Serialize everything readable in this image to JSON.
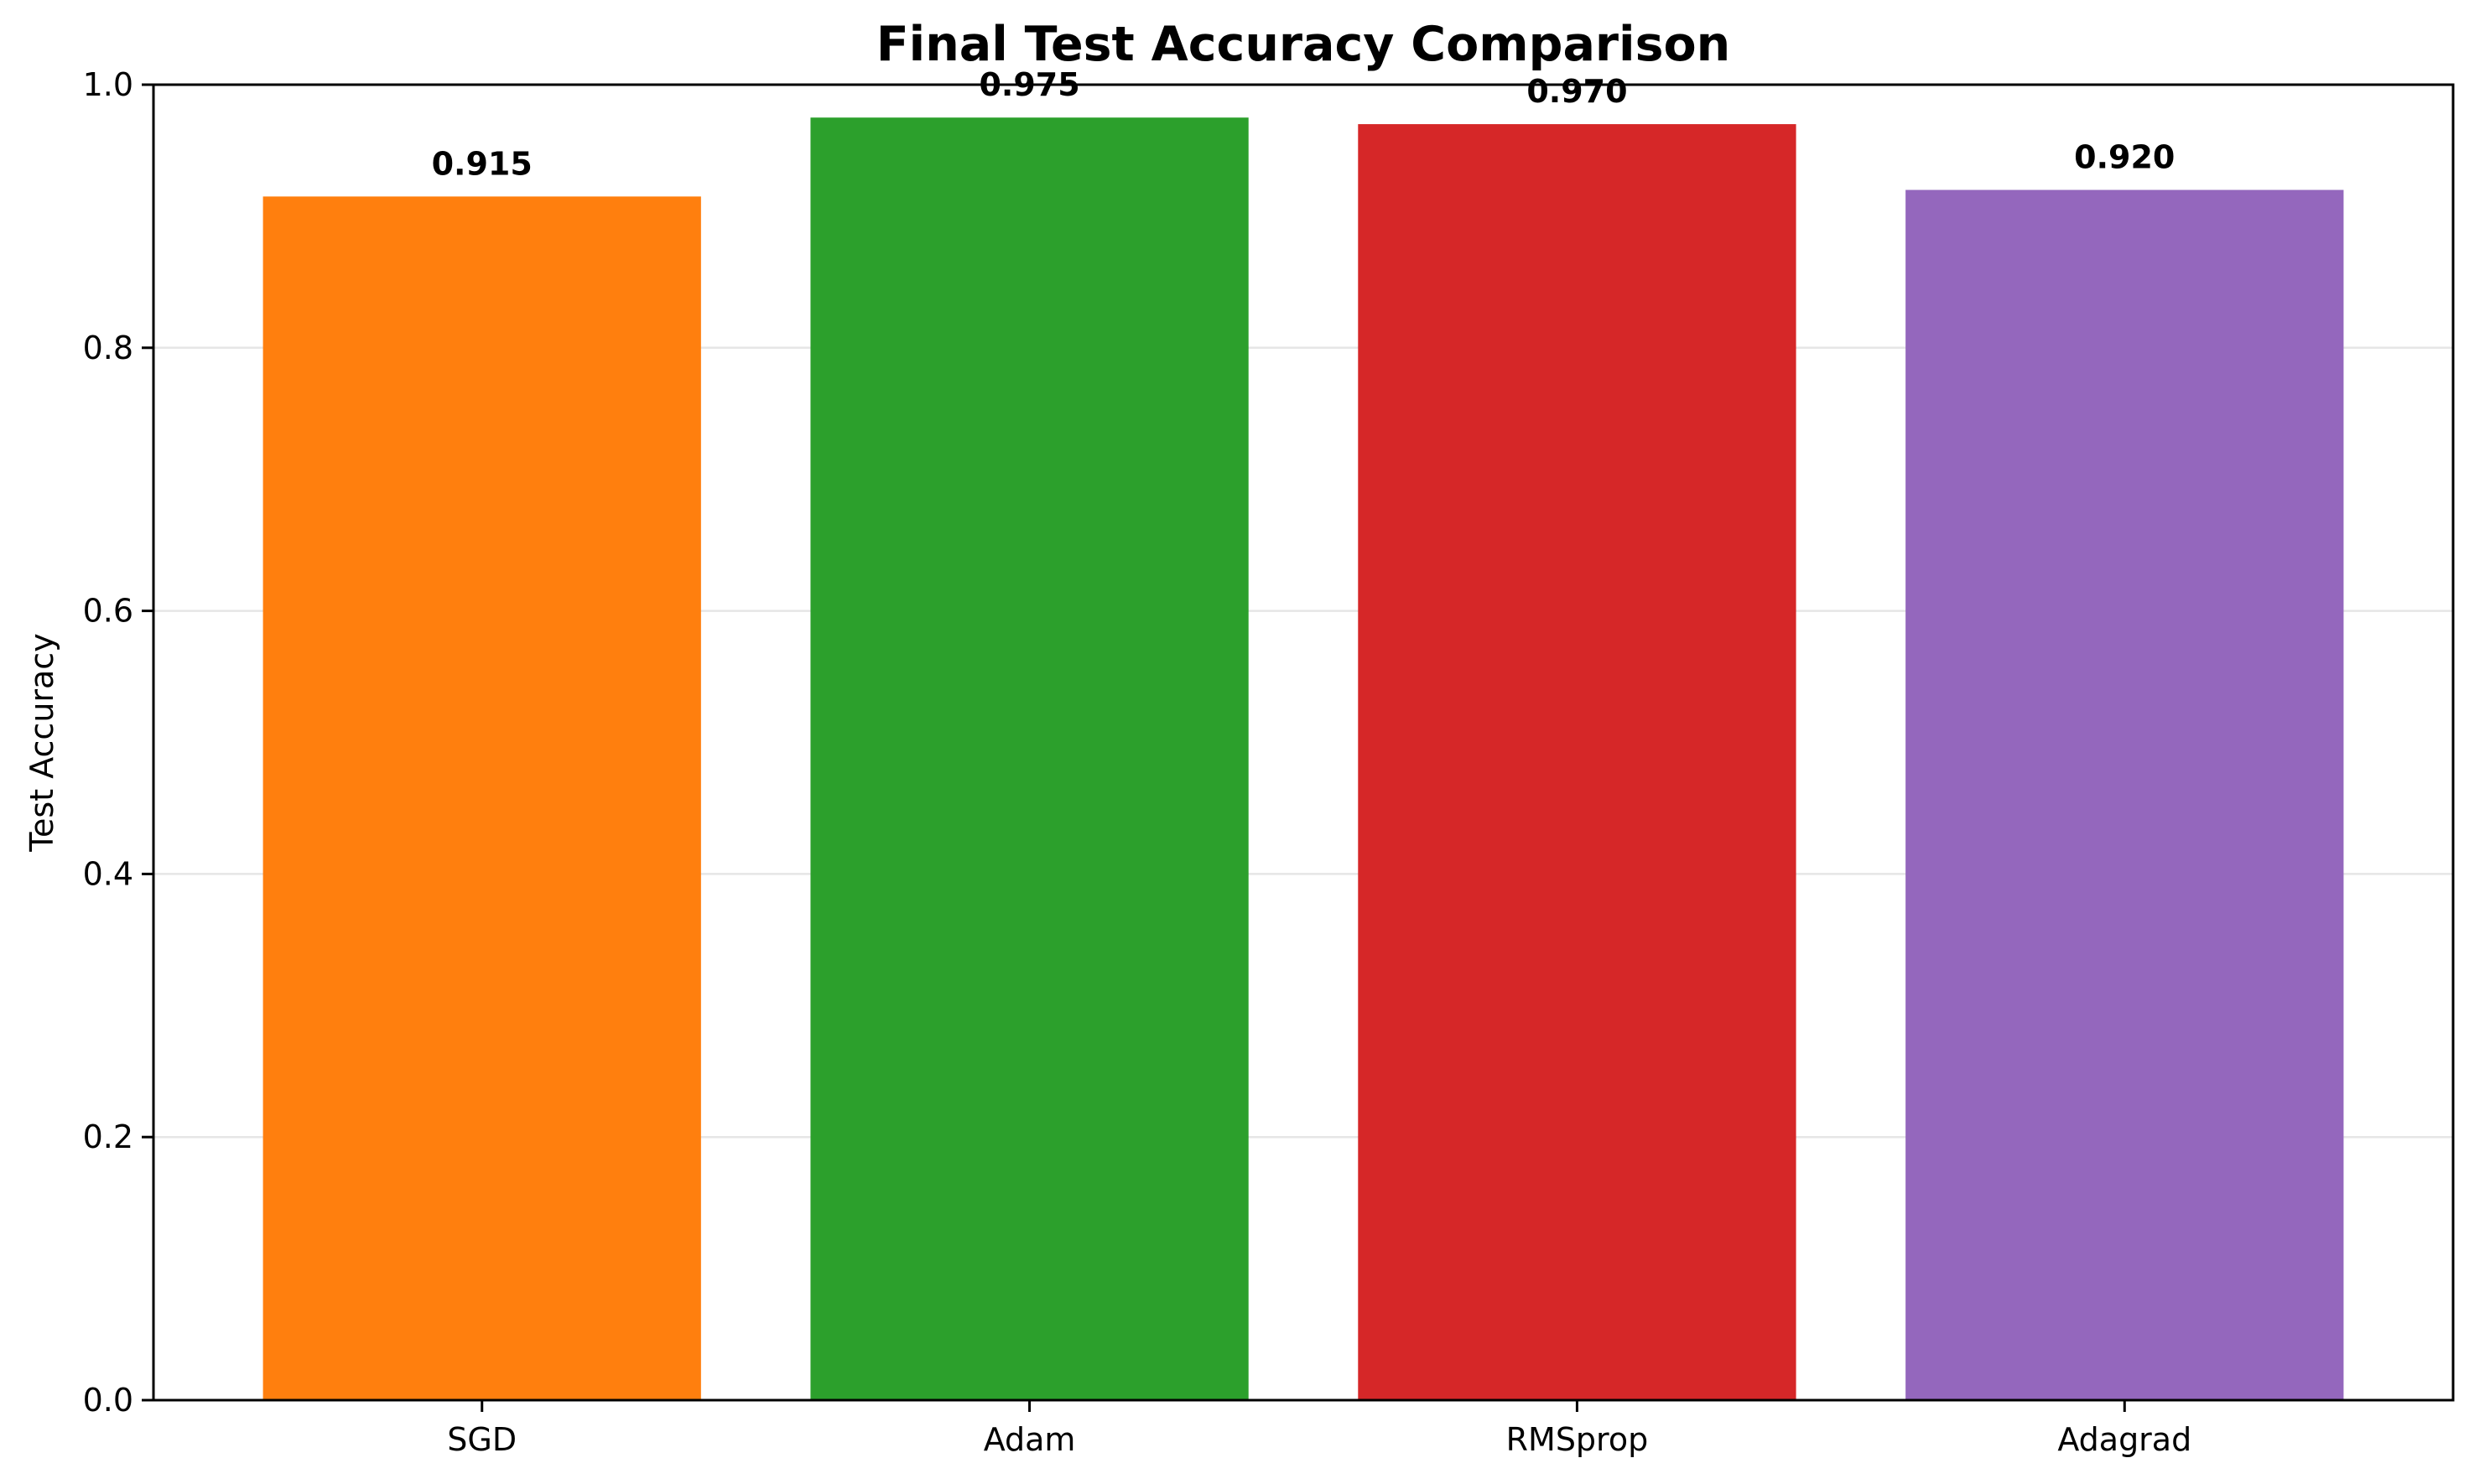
{
  "chart_data": {
    "type": "bar",
    "title": "Final Test Accuracy Comparison",
    "xlabel": "",
    "ylabel": "Test Accuracy",
    "categories": [
      "SGD",
      "Adam",
      "RMSprop",
      "Adagrad"
    ],
    "values": [
      0.915,
      0.975,
      0.97,
      0.92
    ],
    "value_labels": [
      "0.915",
      "0.975",
      "0.970",
      "0.920"
    ],
    "colors": [
      "#ff7f0e",
      "#2ca02c",
      "#d62728",
      "#9467bd"
    ],
    "ylim": [
      0,
      1.0
    ],
    "yticks": [
      0.0,
      0.2,
      0.4,
      0.6,
      0.8,
      1.0
    ],
    "ytick_labels": [
      "0.0",
      "0.2",
      "0.4",
      "0.6",
      "0.8",
      "1.0"
    ],
    "grid": "horizontal",
    "legend": "none"
  }
}
